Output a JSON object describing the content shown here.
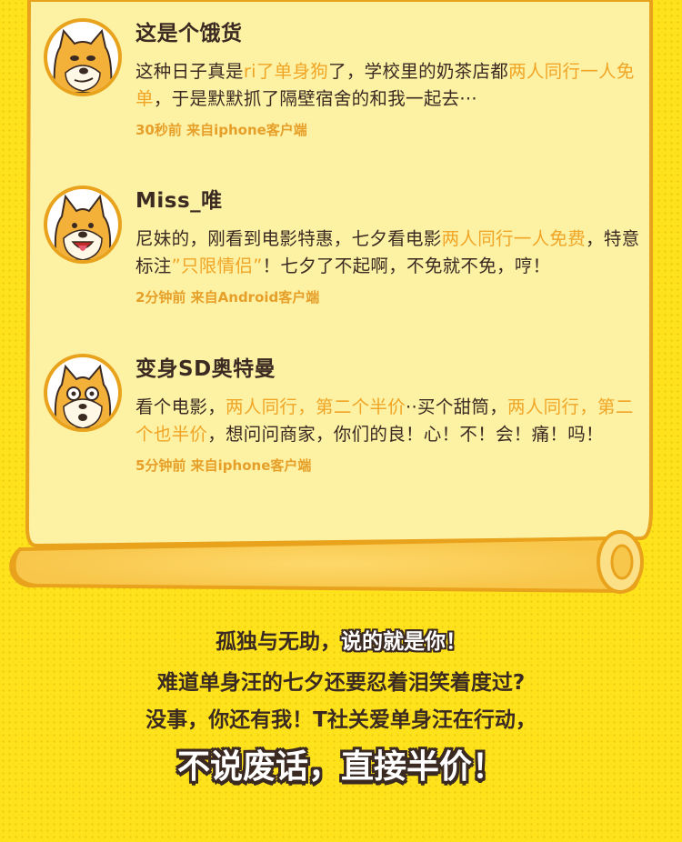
{
  "comments": [
    {
      "username": "这是个饿货",
      "segments": [
        {
          "t": "这种日子真是",
          "hl": false
        },
        {
          "t": "ri了单身狗",
          "hl": true
        },
        {
          "t": "了，学校里的奶茶店都",
          "hl": false
        },
        {
          "t": "两人同行一人免单",
          "hl": true
        },
        {
          "t": "，于是默默抓了隔壁宿舍的和我一起去···",
          "hl": false
        }
      ],
      "meta": "30秒前 来自iphone客户端",
      "avatar": "doge-avatar-smirk"
    },
    {
      "username": "Miss_唯",
      "segments": [
        {
          "t": "尼妹的，刚看到电影特惠，七夕看电影",
          "hl": false
        },
        {
          "t": "两人同行一人免费",
          "hl": true
        },
        {
          "t": "，特意标注",
          "hl": false
        },
        {
          "t": "”只限情侣”",
          "hl": true
        },
        {
          "t": "！七夕了不起啊，不免就不免，哼！",
          "hl": false
        }
      ],
      "meta": "2分钟前 来自Android客户端",
      "avatar": "doge-avatar-tongue"
    },
    {
      "username": "变身SD奥特曼",
      "segments": [
        {
          "t": "看个电影，",
          "hl": false
        },
        {
          "t": "两人同行，第二个半价",
          "hl": true
        },
        {
          "t": "··买个甜筒，",
          "hl": false
        },
        {
          "t": "两人同行，第二个也半价",
          "hl": true
        },
        {
          "t": "，想问问商家，你们的良！心！不！会！痛！吗！",
          "hl": false
        }
      ],
      "meta": "5分钟前 来自iphone客户端",
      "avatar": "doge-avatar-shocked"
    }
  ],
  "slogan": {
    "line1_a": "孤独与无助，",
    "line1_b": "说的就是你！",
    "line2": "难道单身汪的七夕还要忍着泪笑着度过?",
    "line3": "没事，你还有我！T社关爱单身汪在行动，",
    "line4": "不说废话，直接半价！"
  },
  "colors": {
    "background": "#fde21c",
    "scroll": "#fdf1a4",
    "scroll_border": "#e9a21c",
    "text": "#3a2a22",
    "highlight": "#f0a526"
  }
}
